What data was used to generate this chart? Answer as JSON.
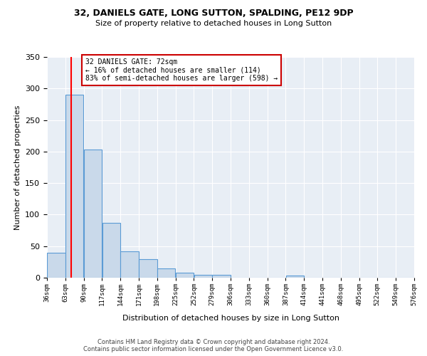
{
  "title1": "32, DANIELS GATE, LONG SUTTON, SPALDING, PE12 9DP",
  "title2": "Size of property relative to detached houses in Long Sutton",
  "xlabel": "Distribution of detached houses by size in Long Sutton",
  "ylabel": "Number of detached properties",
  "footnote": "Contains HM Land Registry data © Crown copyright and database right 2024.\nContains public sector information licensed under the Open Government Licence v3.0.",
  "bin_edges": [
    36,
    63,
    90,
    117,
    144,
    171,
    198,
    225,
    252,
    279,
    306,
    333,
    360,
    387,
    414,
    441,
    468,
    495,
    522,
    549,
    576
  ],
  "bar_heights": [
    40,
    290,
    203,
    87,
    42,
    29,
    15,
    8,
    4,
    5,
    0,
    0,
    0,
    3,
    0,
    0,
    0,
    0,
    0,
    0
  ],
  "bar_color": "#c9d9ea",
  "bar_edge_color": "#5b9bd5",
  "red_line_x": 72,
  "annotation_text": "32 DANIELS GATE: 72sqm\n← 16% of detached houses are smaller (114)\n83% of semi-detached houses are larger (598) →",
  "annotation_box_color": "#ffffff",
  "annotation_box_edge_color": "#cc0000",
  "ylim": [
    0,
    350
  ],
  "xlim": [
    36,
    576
  ],
  "background_color": "#e8eef5",
  "grid_color": "#ffffff",
  "yticks": [
    0,
    50,
    100,
    150,
    200,
    250,
    300,
    350
  ]
}
